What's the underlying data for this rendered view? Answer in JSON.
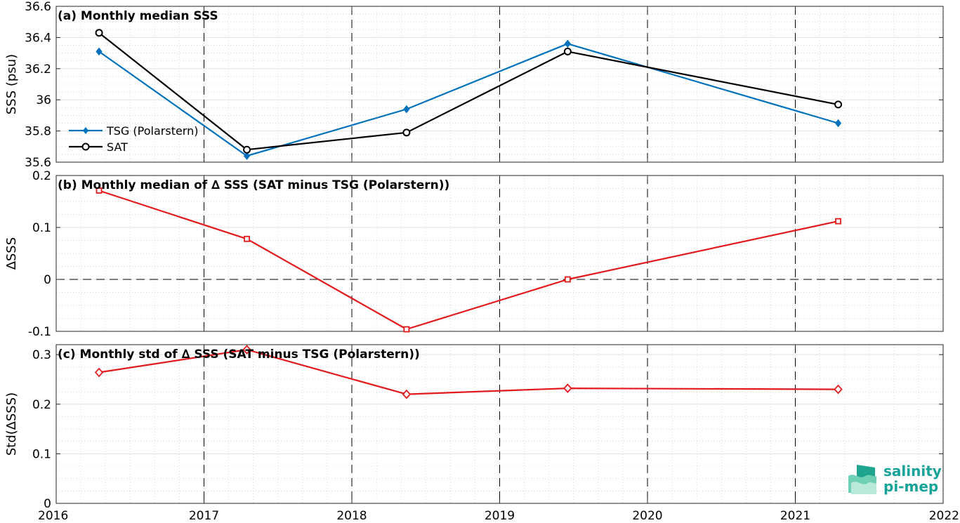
{
  "x_axis": {
    "range": [
      2016,
      2022
    ],
    "ticks": [
      2016,
      2017,
      2018,
      2019,
      2020,
      2021,
      2022
    ],
    "tick_labels": [
      "2016",
      "2017",
      "2018",
      "2019",
      "2020",
      "2021",
      "2022"
    ]
  },
  "logo": {
    "line1": "salinity",
    "line2": "pi-mep"
  },
  "colors": {
    "tsg": "#0072bd",
    "sat": "#000000",
    "delta": "#e31a1c"
  },
  "chart_data": [
    {
      "type": "line",
      "title": "(a) Monthly median SSS",
      "ylabel": "SSS (psu)",
      "ylim": [
        35.6,
        36.6
      ],
      "yticks": [
        35.6,
        35.8,
        36,
        36.2,
        36.4,
        36.6
      ],
      "ytick_labels": [
        "35.6",
        "35.8",
        "36",
        "36.2",
        "36.4",
        "36.6"
      ],
      "x": [
        2016.29,
        2017.29,
        2018.37,
        2019.46,
        2021.29
      ],
      "series": [
        {
          "name": "TSG (Polarstern)",
          "values": [
            36.31,
            35.64,
            35.94,
            36.36,
            35.85
          ]
        },
        {
          "name": "SAT",
          "values": [
            36.43,
            35.68,
            35.79,
            36.31,
            35.97
          ]
        }
      ],
      "legend": "left-middle",
      "grid": true
    },
    {
      "type": "line",
      "title": "(b) Monthly median of ∆ SSS (SAT minus TSG (Polarstern))",
      "ylabel": "∆SSS",
      "ylim": [
        -0.1,
        0.2
      ],
      "yticks": [
        -0.1,
        0,
        0.1,
        0.2
      ],
      "ytick_labels": [
        "-0.1",
        "0",
        "0.1",
        "0.2"
      ],
      "x": [
        2016.29,
        2017.29,
        2018.37,
        2019.46,
        2021.29
      ],
      "series": [
        {
          "values": [
            0.171,
            0.078,
            -0.096,
            0.0,
            0.112
          ]
        }
      ],
      "zero_line": true,
      "grid": true
    },
    {
      "type": "line",
      "title": "(c) Monthly std of ∆ SSS (SAT minus TSG (Polarstern))",
      "ylabel": "Std(∆SSS)",
      "ylim": [
        0,
        0.32
      ],
      "yticks": [
        0,
        0.1,
        0.2,
        0.3
      ],
      "ytick_labels": [
        "0",
        "0.1",
        "0.2",
        "0.3"
      ],
      "x": [
        2016.29,
        2017.29,
        2018.37,
        2019.46,
        2021.29
      ],
      "series": [
        {
          "values": [
            0.264,
            0.31,
            0.22,
            0.232,
            0.23
          ]
        }
      ],
      "grid": true
    }
  ]
}
